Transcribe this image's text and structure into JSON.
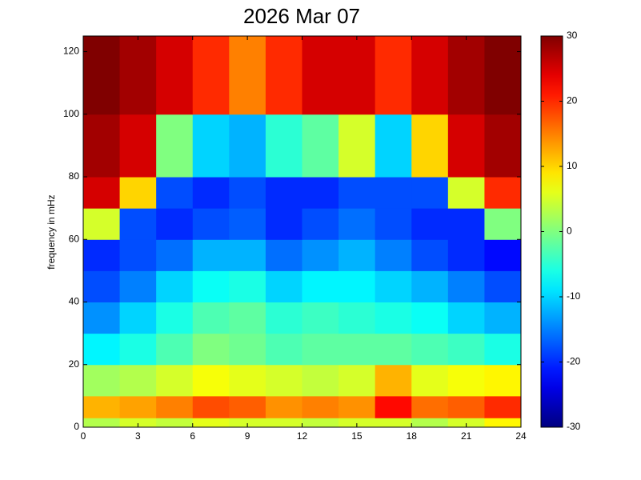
{
  "chart_data": {
    "type": "heatmap",
    "title": "2026 Mar 07",
    "y_label": "frequency in mHz",
    "colormap": "jet",
    "x_bins": [
      0,
      2,
      4,
      6,
      8,
      10,
      12,
      14,
      16,
      18,
      20,
      22,
      24
    ],
    "y_bins": [
      0,
      3,
      10,
      20,
      30,
      40,
      50,
      60,
      70,
      80,
      100,
      125
    ],
    "z": [
      [
        3,
        5,
        4,
        6,
        5,
        5,
        4,
        5,
        5,
        3,
        5,
        8
      ],
      [
        12,
        13,
        15,
        18,
        17,
        14,
        15,
        14,
        22,
        16,
        17,
        20
      ],
      [
        2,
        3,
        5,
        7,
        6,
        5,
        4,
        5,
        12,
        6,
        7,
        8
      ],
      [
        -8,
        -6,
        -3,
        0,
        -1,
        -3,
        -2,
        -2,
        -2,
        -3,
        -4,
        -6
      ],
      [
        -14,
        -10,
        -6,
        -3,
        -2,
        -5,
        -4,
        -5,
        -6,
        -7,
        -10,
        -12
      ],
      [
        -18,
        -15,
        -10,
        -7,
        -6,
        -10,
        -8,
        -8,
        -10,
        -12,
        -15,
        -18
      ],
      [
        -20,
        -18,
        -16,
        -12,
        -12,
        -16,
        -14,
        -12,
        -15,
        -18,
        -20,
        -22
      ],
      [
        5,
        -18,
        -20,
        -18,
        -17,
        -20,
        -18,
        -16,
        -18,
        -20,
        -20,
        0
      ],
      [
        25,
        10,
        -18,
        -20,
        -18,
        -20,
        -20,
        -18,
        -18,
        -18,
        5,
        20
      ],
      [
        28,
        25,
        0,
        -10,
        -12,
        -5,
        -2,
        5,
        -10,
        10,
        25,
        28
      ],
      [
        30,
        28,
        25,
        20,
        15,
        20,
        25,
        25,
        20,
        25,
        28,
        30
      ]
    ],
    "xlim": [
      0,
      24
    ],
    "xticks": [
      0,
      3,
      6,
      9,
      12,
      15,
      18,
      21,
      24
    ],
    "ylim": [
      0,
      125
    ],
    "yticks": [
      0,
      20,
      40,
      60,
      80,
      100,
      120
    ],
    "clim": [
      -30,
      30
    ],
    "cticks": [
      -30,
      -20,
      -10,
      0,
      10,
      20,
      30
    ]
  }
}
